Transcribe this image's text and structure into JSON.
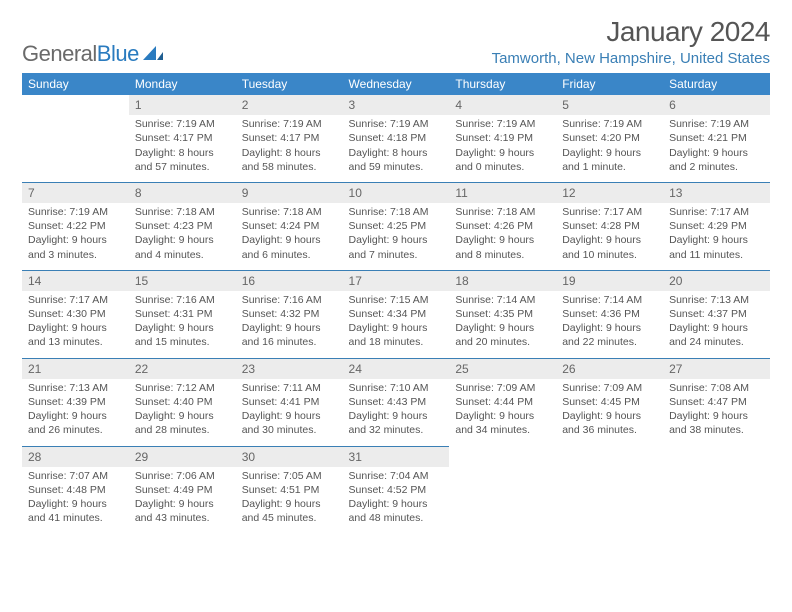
{
  "brand": {
    "part1": "General",
    "part2": "Blue"
  },
  "title": "January 2024",
  "location": "Tamworth, New Hampshire, United States",
  "colors": {
    "header_bg": "#3a86c8",
    "header_text": "#ffffff",
    "daynum_bg": "#ececec",
    "border": "#3a7fb5",
    "body_text": "#555555",
    "location_text": "#3a7fb5",
    "brand_gray": "#6a6a6a",
    "brand_blue": "#2a7bbf"
  },
  "typography": {
    "title_fontsize": 28,
    "location_fontsize": 15,
    "weekday_fontsize": 12,
    "daynum_fontsize": 12,
    "cell_fontsize": 10.5
  },
  "weekdays": [
    "Sunday",
    "Monday",
    "Tuesday",
    "Wednesday",
    "Thursday",
    "Friday",
    "Saturday"
  ],
  "weeks": [
    [
      null,
      {
        "n": "1",
        "sr": "7:19 AM",
        "ss": "4:17 PM",
        "dl": "8 hours and 57 minutes."
      },
      {
        "n": "2",
        "sr": "7:19 AM",
        "ss": "4:17 PM",
        "dl": "8 hours and 58 minutes."
      },
      {
        "n": "3",
        "sr": "7:19 AM",
        "ss": "4:18 PM",
        "dl": "8 hours and 59 minutes."
      },
      {
        "n": "4",
        "sr": "7:19 AM",
        "ss": "4:19 PM",
        "dl": "9 hours and 0 minutes."
      },
      {
        "n": "5",
        "sr": "7:19 AM",
        "ss": "4:20 PM",
        "dl": "9 hours and 1 minute."
      },
      {
        "n": "6",
        "sr": "7:19 AM",
        "ss": "4:21 PM",
        "dl": "9 hours and 2 minutes."
      }
    ],
    [
      {
        "n": "7",
        "sr": "7:19 AM",
        "ss": "4:22 PM",
        "dl": "9 hours and 3 minutes."
      },
      {
        "n": "8",
        "sr": "7:18 AM",
        "ss": "4:23 PM",
        "dl": "9 hours and 4 minutes."
      },
      {
        "n": "9",
        "sr": "7:18 AM",
        "ss": "4:24 PM",
        "dl": "9 hours and 6 minutes."
      },
      {
        "n": "10",
        "sr": "7:18 AM",
        "ss": "4:25 PM",
        "dl": "9 hours and 7 minutes."
      },
      {
        "n": "11",
        "sr": "7:18 AM",
        "ss": "4:26 PM",
        "dl": "9 hours and 8 minutes."
      },
      {
        "n": "12",
        "sr": "7:17 AM",
        "ss": "4:28 PM",
        "dl": "9 hours and 10 minutes."
      },
      {
        "n": "13",
        "sr": "7:17 AM",
        "ss": "4:29 PM",
        "dl": "9 hours and 11 minutes."
      }
    ],
    [
      {
        "n": "14",
        "sr": "7:17 AM",
        "ss": "4:30 PM",
        "dl": "9 hours and 13 minutes."
      },
      {
        "n": "15",
        "sr": "7:16 AM",
        "ss": "4:31 PM",
        "dl": "9 hours and 15 minutes."
      },
      {
        "n": "16",
        "sr": "7:16 AM",
        "ss": "4:32 PM",
        "dl": "9 hours and 16 minutes."
      },
      {
        "n": "17",
        "sr": "7:15 AM",
        "ss": "4:34 PM",
        "dl": "9 hours and 18 minutes."
      },
      {
        "n": "18",
        "sr": "7:14 AM",
        "ss": "4:35 PM",
        "dl": "9 hours and 20 minutes."
      },
      {
        "n": "19",
        "sr": "7:14 AM",
        "ss": "4:36 PM",
        "dl": "9 hours and 22 minutes."
      },
      {
        "n": "20",
        "sr": "7:13 AM",
        "ss": "4:37 PM",
        "dl": "9 hours and 24 minutes."
      }
    ],
    [
      {
        "n": "21",
        "sr": "7:13 AM",
        "ss": "4:39 PM",
        "dl": "9 hours and 26 minutes."
      },
      {
        "n": "22",
        "sr": "7:12 AM",
        "ss": "4:40 PM",
        "dl": "9 hours and 28 minutes."
      },
      {
        "n": "23",
        "sr": "7:11 AM",
        "ss": "4:41 PM",
        "dl": "9 hours and 30 minutes."
      },
      {
        "n": "24",
        "sr": "7:10 AM",
        "ss": "4:43 PM",
        "dl": "9 hours and 32 minutes."
      },
      {
        "n": "25",
        "sr": "7:09 AM",
        "ss": "4:44 PM",
        "dl": "9 hours and 34 minutes."
      },
      {
        "n": "26",
        "sr": "7:09 AM",
        "ss": "4:45 PM",
        "dl": "9 hours and 36 minutes."
      },
      {
        "n": "27",
        "sr": "7:08 AM",
        "ss": "4:47 PM",
        "dl": "9 hours and 38 minutes."
      }
    ],
    [
      {
        "n": "28",
        "sr": "7:07 AM",
        "ss": "4:48 PM",
        "dl": "9 hours and 41 minutes."
      },
      {
        "n": "29",
        "sr": "7:06 AM",
        "ss": "4:49 PM",
        "dl": "9 hours and 43 minutes."
      },
      {
        "n": "30",
        "sr": "7:05 AM",
        "ss": "4:51 PM",
        "dl": "9 hours and 45 minutes."
      },
      {
        "n": "31",
        "sr": "7:04 AM",
        "ss": "4:52 PM",
        "dl": "9 hours and 48 minutes."
      },
      null,
      null,
      null
    ]
  ],
  "labels": {
    "sunrise": "Sunrise:",
    "sunset": "Sunset:",
    "daylight": "Daylight:"
  }
}
